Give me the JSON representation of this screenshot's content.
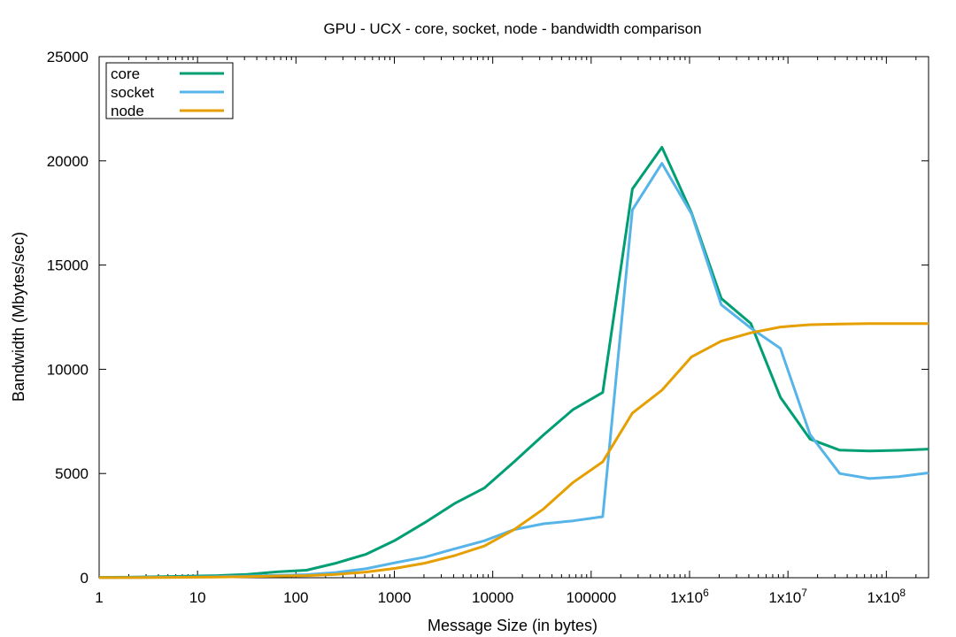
{
  "chart_data": {
    "type": "line",
    "title": "GPU - UCX - core, socket, node - bandwidth comparison",
    "xlabel": "Message Size (in bytes)",
    "ylabel": "Bandwidth (Mbytes/sec)",
    "x_scale": "log",
    "xlim": [
      1,
      268435456
    ],
    "ylim": [
      0,
      25000
    ],
    "grid": false,
    "legend_position": "top-left",
    "x_ticks": [
      {
        "value": 1,
        "label": "1"
      },
      {
        "value": 10,
        "label": "10"
      },
      {
        "value": 100,
        "label": "100"
      },
      {
        "value": 1000,
        "label": "1000"
      },
      {
        "value": 10000,
        "label": "10000"
      },
      {
        "value": 100000,
        "label": "100000"
      },
      {
        "value": 1000000,
        "label": "1x10^6"
      },
      {
        "value": 10000000,
        "label": "1x10^7"
      },
      {
        "value": 100000000,
        "label": "1x10^8"
      }
    ],
    "y_ticks": [
      0,
      5000,
      10000,
      15000,
      20000,
      25000
    ],
    "x": [
      1,
      2,
      4,
      8,
      16,
      32,
      64,
      128,
      256,
      512,
      1024,
      2048,
      4096,
      8192,
      16384,
      32768,
      65536,
      131072,
      262144,
      524288,
      1048576,
      2097152,
      4194304,
      8388608,
      16777216,
      33554432,
      67108864,
      134217728,
      268435456
    ],
    "series": [
      {
        "name": "core",
        "color": "#009e73",
        "values": [
          15,
          25,
          45,
          75,
          100,
          160,
          280,
          360,
          700,
          1120,
          1800,
          2650,
          3560,
          4300,
          5550,
          6850,
          8070,
          8890,
          18650,
          20650,
          17500,
          13400,
          12200,
          8650,
          6650,
          6120,
          6080,
          6110,
          6170
        ]
      },
      {
        "name": "socket",
        "color": "#56b4e9",
        "values": [
          5,
          10,
          20,
          35,
          55,
          80,
          110,
          150,
          250,
          430,
          720,
          990,
          1390,
          1770,
          2310,
          2590,
          2730,
          2930,
          17650,
          19880,
          17450,
          13100,
          11980,
          11000,
          6870,
          5000,
          4760,
          4850,
          5030
        ]
      },
      {
        "name": "node",
        "color": "#e69f00",
        "values": [
          3,
          6,
          12,
          22,
          35,
          55,
          80,
          100,
          160,
          270,
          450,
          700,
          1060,
          1520,
          2300,
          3300,
          4570,
          5560,
          7900,
          9000,
          10600,
          11350,
          11750,
          12030,
          12140,
          12170,
          12190,
          12190,
          12190
        ]
      }
    ]
  }
}
